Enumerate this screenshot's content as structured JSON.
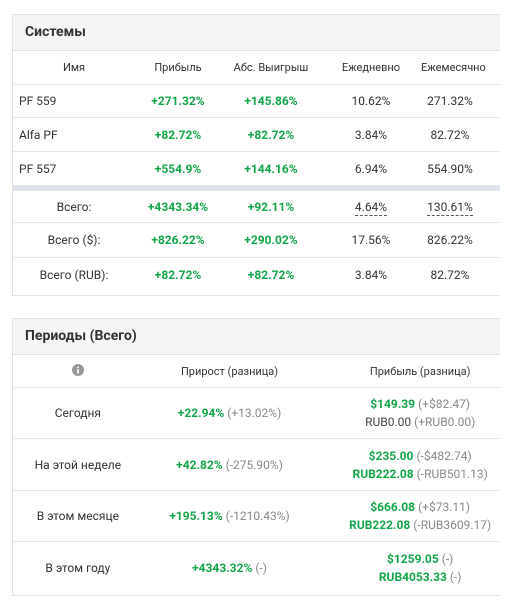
{
  "systems": {
    "title": "Системы",
    "columns": [
      "Имя",
      "Прибыль",
      "Абс. Выигрыш",
      "Ежедневно",
      "Ежемесячно"
    ],
    "rows": [
      [
        "PF 559",
        "+271.32%",
        "+145.86%",
        "10.62%",
        "271.32%"
      ],
      [
        "Alfa PF",
        "+82.72%",
        "+82.72%",
        "3.84%",
        "82.72%"
      ],
      [
        "PF 557",
        "+554.9%",
        "+144.16%",
        "6.94%",
        "554.90%"
      ]
    ],
    "totals": [
      [
        "Всего:",
        "+4343.34%",
        "+92.11%",
        "4.64%",
        "130.61%"
      ],
      [
        "Всего ($):",
        "+826.22%",
        "+290.02%",
        "17.56%",
        "826.22%"
      ],
      [
        "Всего (RUB):",
        "+82.72%",
        "+82.72%",
        "3.84%",
        "82.72%"
      ]
    ]
  },
  "periods": {
    "title": "Периоды (Всего)",
    "columns": [
      "Прирост (разница)",
      "Прибыль (разница)"
    ],
    "rows": [
      {
        "label": "Сегодня",
        "growth": "+22.94%",
        "growth_diff": "(+13.02%)",
        "profit": [
          [
            "$149.39",
            "(+$82.47)"
          ],
          [
            "RUB0.00",
            "(+RUB0.00)"
          ]
        ]
      },
      {
        "label": "На этой неделе",
        "growth": "+42.82%",
        "growth_diff": "(-275.90%)",
        "profit": [
          [
            "$235.00",
            "(-$482.74)"
          ],
          [
            "RUB222.08",
            "(-RUB501.13)"
          ]
        ]
      },
      {
        "label": "В этом месяце",
        "growth": "+195.13%",
        "growth_diff": "(-1210.43%)",
        "profit": [
          [
            "$666.08",
            "(+$73.11)"
          ],
          [
            "RUB222.08",
            "(-RUB3609.17)"
          ]
        ]
      },
      {
        "label": "В этом году",
        "growth": "+4343.32%",
        "growth_diff": "(-)",
        "profit": [
          [
            "$1259.05",
            "(-)"
          ],
          [
            "RUB4053.33",
            "(-)"
          ]
        ]
      }
    ]
  }
}
